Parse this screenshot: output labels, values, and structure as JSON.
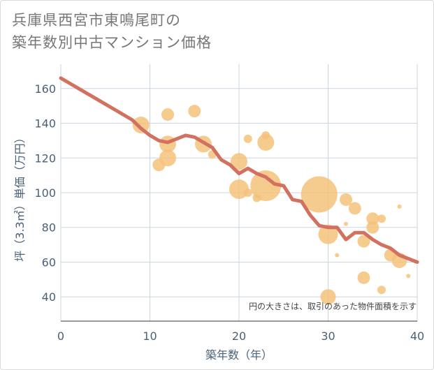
{
  "title": {
    "line1": "兵庫県西宮市東鳴尾町の",
    "line2": "築年数別中古マンション価格"
  },
  "colors": {
    "bubble": "#f5c27a",
    "line": "#d27160",
    "grid": "#c9d6e2",
    "tick": "#4a6177"
  },
  "chart_data": {
    "type": "scatter",
    "xlabel": "築年数（年）",
    "ylabel": "坪（3.3㎡）単価（万円）",
    "xlim": [
      0,
      40
    ],
    "ylim": [
      26,
      174
    ],
    "xticks": [
      0,
      10,
      20,
      30,
      40
    ],
    "yticks": [
      40,
      60,
      80,
      100,
      120,
      140,
      160
    ],
    "grid": true,
    "annotation": "円の大きさは、取引のあった物件面積を示す",
    "bubbles": [
      {
        "x": 9,
        "y": 139,
        "size": 12
      },
      {
        "x": 12,
        "y": 145,
        "size": 9
      },
      {
        "x": 15,
        "y": 147,
        "size": 9
      },
      {
        "x": 12,
        "y": 128,
        "size": 12
      },
      {
        "x": 12,
        "y": 120,
        "size": 12
      },
      {
        "x": 11,
        "y": 116,
        "size": 9
      },
      {
        "x": 16,
        "y": 128,
        "size": 12
      },
      {
        "x": 17,
        "y": 122,
        "size": 6
      },
      {
        "x": 21,
        "y": 131,
        "size": 6
      },
      {
        "x": 23,
        "y": 133,
        "size": 6
      },
      {
        "x": 23,
        "y": 129,
        "size": 12
      },
      {
        "x": 20,
        "y": 118,
        "size": 12
      },
      {
        "x": 20,
        "y": 102,
        "size": 14
      },
      {
        "x": 21,
        "y": 100,
        "size": 6
      },
      {
        "x": 22,
        "y": 97,
        "size": 6
      },
      {
        "x": 23,
        "y": 104,
        "size": 22
      },
      {
        "x": 29,
        "y": 99,
        "size": 26
      },
      {
        "x": 32,
        "y": 96,
        "size": 9
      },
      {
        "x": 33,
        "y": 91,
        "size": 9
      },
      {
        "x": 32,
        "y": 82,
        "size": 3
      },
      {
        "x": 30,
        "y": 76,
        "size": 14
      },
      {
        "x": 31,
        "y": 64,
        "size": 3
      },
      {
        "x": 35,
        "y": 85,
        "size": 9
      },
      {
        "x": 36,
        "y": 85,
        "size": 6
      },
      {
        "x": 35,
        "y": 80,
        "size": 9
      },
      {
        "x": 34,
        "y": 72,
        "size": 9
      },
      {
        "x": 38,
        "y": 92,
        "size": 3
      },
      {
        "x": 37,
        "y": 64,
        "size": 9
      },
      {
        "x": 38,
        "y": 61,
        "size": 11
      },
      {
        "x": 34,
        "y": 51,
        "size": 9
      },
      {
        "x": 36,
        "y": 44,
        "size": 6
      },
      {
        "x": 39,
        "y": 52,
        "size": 3
      },
      {
        "x": 30,
        "y": 40,
        "size": 11
      }
    ],
    "trend": {
      "x": [
        0,
        1,
        2,
        3,
        4,
        5,
        6,
        7,
        8,
        9,
        10,
        11,
        12,
        13,
        14,
        15,
        16,
        17,
        18,
        19,
        20,
        21,
        22,
        23,
        24,
        25,
        26,
        27,
        28,
        29,
        30,
        31,
        32,
        33,
        34,
        35,
        36,
        37,
        38,
        39,
        40
      ],
      "y": [
        166,
        163,
        160,
        157,
        154,
        151,
        148,
        145,
        142,
        137,
        133,
        130,
        129,
        131,
        133,
        132,
        129,
        126,
        119,
        116,
        111,
        114,
        111,
        109,
        105,
        104,
        96,
        95,
        87,
        81,
        80,
        80,
        73,
        77,
        77,
        73,
        70,
        68,
        64,
        62,
        60
      ]
    }
  }
}
